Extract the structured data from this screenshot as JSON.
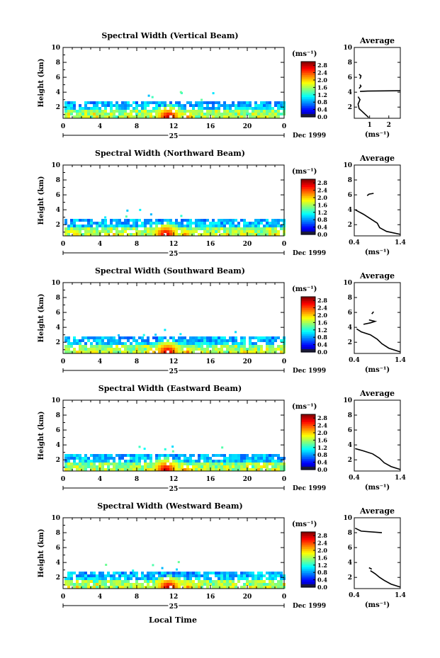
{
  "figure": {
    "xlabel": "Local Time",
    "date_label": "Dec 1999",
    "day_label": "25",
    "ylabel": "Height (km)",
    "colorbar_unit": "(ms⁻¹)",
    "avg_title": "Average",
    "avg_unit": "(ms⁻¹)"
  },
  "chart_data": [
    {
      "type": "heatmap",
      "title": "Spectral Width (Vertical Beam)",
      "xlabel": "",
      "ylabel": "Height (km)",
      "xlim": [
        0,
        24
      ],
      "ylim": [
        0.5,
        10
      ],
      "xticks": [
        "0",
        "4",
        "8",
        "12",
        "16",
        "20",
        "0"
      ],
      "yticks": [
        "2",
        "4",
        "6",
        "8",
        "10"
      ],
      "colorbar": {
        "min": 0.0,
        "max": 3.0,
        "ticks": [
          "0.0",
          "0.4",
          "0.8",
          "1.2",
          "1.6",
          "2.0",
          "2.4",
          "2.8"
        ]
      },
      "echo_top_km": 2.8,
      "hot_spot": {
        "hour": 11.3,
        "height_km": 0.9,
        "value": 2.8
      },
      "average_profile": {
        "title": "Average",
        "xlabel": "(ms⁻¹)",
        "xlim": [
          0.2,
          2.6
        ],
        "xticks": [
          "1",
          "2"
        ],
        "ylim": [
          0.5,
          10
        ],
        "yticks": [
          "2",
          "4",
          "6",
          "8",
          "10"
        ],
        "segments": [
          [
            [
              0.95,
              0.6
            ],
            [
              0.7,
              1.2
            ],
            [
              0.45,
              1.8
            ],
            [
              0.4,
              2.4
            ],
            [
              0.5,
              3.0
            ],
            [
              0.4,
              3.4
            ]
          ],
          [
            [
              0.5,
              4.1
            ],
            [
              0.9,
              4.15
            ],
            [
              2.6,
              4.2
            ]
          ],
          [
            [
              0.45,
              4.5
            ],
            [
              0.55,
              4.8
            ],
            [
              0.5,
              5.0
            ]
          ],
          [
            [
              0.5,
              5.8
            ],
            [
              0.55,
              6.2
            ],
            [
              0.45,
              6.4
            ]
          ]
        ]
      }
    },
    {
      "type": "heatmap",
      "title": "Spectral Width (Northward Beam)",
      "xlabel": "",
      "ylabel": "Height (km)",
      "xlim": [
        0,
        24
      ],
      "ylim": [
        0.5,
        10
      ],
      "xticks": [
        "0",
        "4",
        "8",
        "12",
        "16",
        "20",
        "0"
      ],
      "yticks": [
        "2",
        "4",
        "6",
        "8",
        "10"
      ],
      "colorbar": {
        "min": 0.0,
        "max": 3.0,
        "ticks": [
          "0.0",
          "0.4",
          "0.8",
          "1.2",
          "1.6",
          "2.0",
          "2.4",
          "2.8"
        ]
      },
      "echo_top_km": 2.8,
      "hot_spot": {
        "hour": 11.0,
        "height_km": 0.9,
        "value": 2.6
      },
      "average_profile": {
        "title": "Average",
        "xlabel": "(ms⁻¹)",
        "xlim": [
          0.4,
          1.4
        ],
        "xticks": [
          "0.4",
          "1.4"
        ],
        "ylim": [
          0.5,
          10
        ],
        "yticks": [
          "2",
          "4",
          "6",
          "8",
          "10"
        ],
        "segments": [
          [
            [
              1.4,
              0.7
            ],
            [
              1.1,
              1.1
            ],
            [
              0.95,
              1.6
            ],
            [
              0.9,
              2.2
            ],
            [
              0.75,
              2.8
            ],
            [
              0.6,
              3.4
            ],
            [
              0.42,
              4.0
            ]
          ],
          [
            [
              0.68,
              5.9
            ],
            [
              0.72,
              6.1
            ],
            [
              0.82,
              6.2
            ]
          ]
        ]
      }
    },
    {
      "type": "heatmap",
      "title": "Spectral Width (Southward Beam)",
      "xlabel": "",
      "ylabel": "Height (km)",
      "xlim": [
        0,
        24
      ],
      "ylim": [
        0.5,
        10
      ],
      "xticks": [
        "0",
        "4",
        "8",
        "12",
        "16",
        "20",
        "0"
      ],
      "yticks": [
        "2",
        "4",
        "6",
        "8",
        "10"
      ],
      "colorbar": {
        "min": 0.0,
        "max": 3.0,
        "ticks": [
          "0.0",
          "0.4",
          "0.8",
          "1.2",
          "1.6",
          "2.0",
          "2.4",
          "2.8"
        ]
      },
      "echo_top_km": 2.8,
      "hot_spot": {
        "hour": 11.2,
        "height_km": 0.9,
        "value": 2.7
      },
      "average_profile": {
        "title": "Average",
        "xlabel": "(ms⁻¹)",
        "xlim": [
          0.4,
          1.4
        ],
        "xticks": [
          "0.4",
          "1.4"
        ],
        "ylim": [
          0.5,
          10
        ],
        "yticks": [
          "2",
          "4",
          "6",
          "8",
          "10"
        ],
        "segments": [
          [
            [
              1.4,
              0.7
            ],
            [
              1.15,
              1.2
            ],
            [
              1.0,
              1.8
            ],
            [
              0.9,
              2.4
            ],
            [
              0.75,
              3.0
            ],
            [
              0.55,
              3.4
            ],
            [
              0.45,
              3.8
            ]
          ],
          [
            [
              0.6,
              4.4
            ],
            [
              0.75,
              4.6
            ],
            [
              0.85,
              4.8
            ],
            [
              0.72,
              5.0
            ]
          ],
          [
            [
              0.78,
              5.8
            ],
            [
              0.82,
              6.1
            ]
          ]
        ]
      }
    },
    {
      "type": "heatmap",
      "title": "Spectral Width (Eastward Beam)",
      "xlabel": "",
      "ylabel": "Height (km)",
      "xlim": [
        0,
        24
      ],
      "ylim": [
        0.5,
        10
      ],
      "xticks": [
        "0",
        "4",
        "8",
        "12",
        "16",
        "20",
        "0"
      ],
      "yticks": [
        "2",
        "4",
        "6",
        "8",
        "10"
      ],
      "colorbar": {
        "min": 0.0,
        "max": 3.0,
        "ticks": [
          "0.0",
          "0.4",
          "0.8",
          "1.2",
          "1.6",
          "2.0",
          "2.4",
          "2.8"
        ]
      },
      "echo_top_km": 2.8,
      "hot_spot": {
        "hour": 11.0,
        "height_km": 0.9,
        "value": 2.6
      },
      "average_profile": {
        "title": "Average",
        "xlabel": "(ms⁻¹)",
        "xlim": [
          0.4,
          1.4
        ],
        "xticks": [
          "0.4",
          "1.4"
        ],
        "ylim": [
          0.5,
          10
        ],
        "yticks": [
          "2",
          "4",
          "6",
          "8",
          "10"
        ],
        "segments": [
          [
            [
              1.4,
              0.7
            ],
            [
              1.2,
              1.1
            ],
            [
              1.05,
              1.6
            ],
            [
              0.95,
              2.2
            ],
            [
              0.8,
              2.8
            ],
            [
              0.6,
              3.2
            ],
            [
              0.42,
              3.5
            ]
          ]
        ]
      }
    },
    {
      "type": "heatmap",
      "title": "Spectral Width (Westward Beam)",
      "xlabel": "",
      "ylabel": "Height (km)",
      "xlim": [
        0,
        24
      ],
      "ylim": [
        0.5,
        10
      ],
      "xticks": [
        "0",
        "4",
        "8",
        "12",
        "16",
        "20",
        "0"
      ],
      "yticks": [
        "2",
        "4",
        "6",
        "8",
        "10"
      ],
      "colorbar": {
        "min": 0.0,
        "max": 3.0,
        "ticks": [
          "0.0",
          "0.4",
          "0.8",
          "1.2",
          "1.6",
          "2.0",
          "2.4",
          "2.8"
        ]
      },
      "echo_top_km": 2.8,
      "hot_spot": {
        "hour": 11.3,
        "height_km": 0.9,
        "value": 2.7
      },
      "average_profile": {
        "title": "Average",
        "xlabel": "(ms⁻¹)",
        "xlim": [
          0.4,
          1.4
        ],
        "xticks": [
          "0.4",
          "1.4"
        ],
        "ylim": [
          0.5,
          10
        ],
        "yticks": [
          "2",
          "4",
          "6",
          "8",
          "10"
        ],
        "segments": [
          [
            [
              1.4,
              0.7
            ],
            [
              1.2,
              1.1
            ],
            [
              1.05,
              1.6
            ],
            [
              0.95,
              2.0
            ],
            [
              0.85,
              2.5
            ],
            [
              0.75,
              2.9
            ]
          ],
          [
            [
              0.78,
              3.1
            ],
            [
              0.72,
              3.3
            ]
          ],
          [
            [
              0.42,
              8.6
            ],
            [
              0.55,
              8.2
            ],
            [
              1.0,
              8.0
            ]
          ]
        ]
      }
    }
  ]
}
